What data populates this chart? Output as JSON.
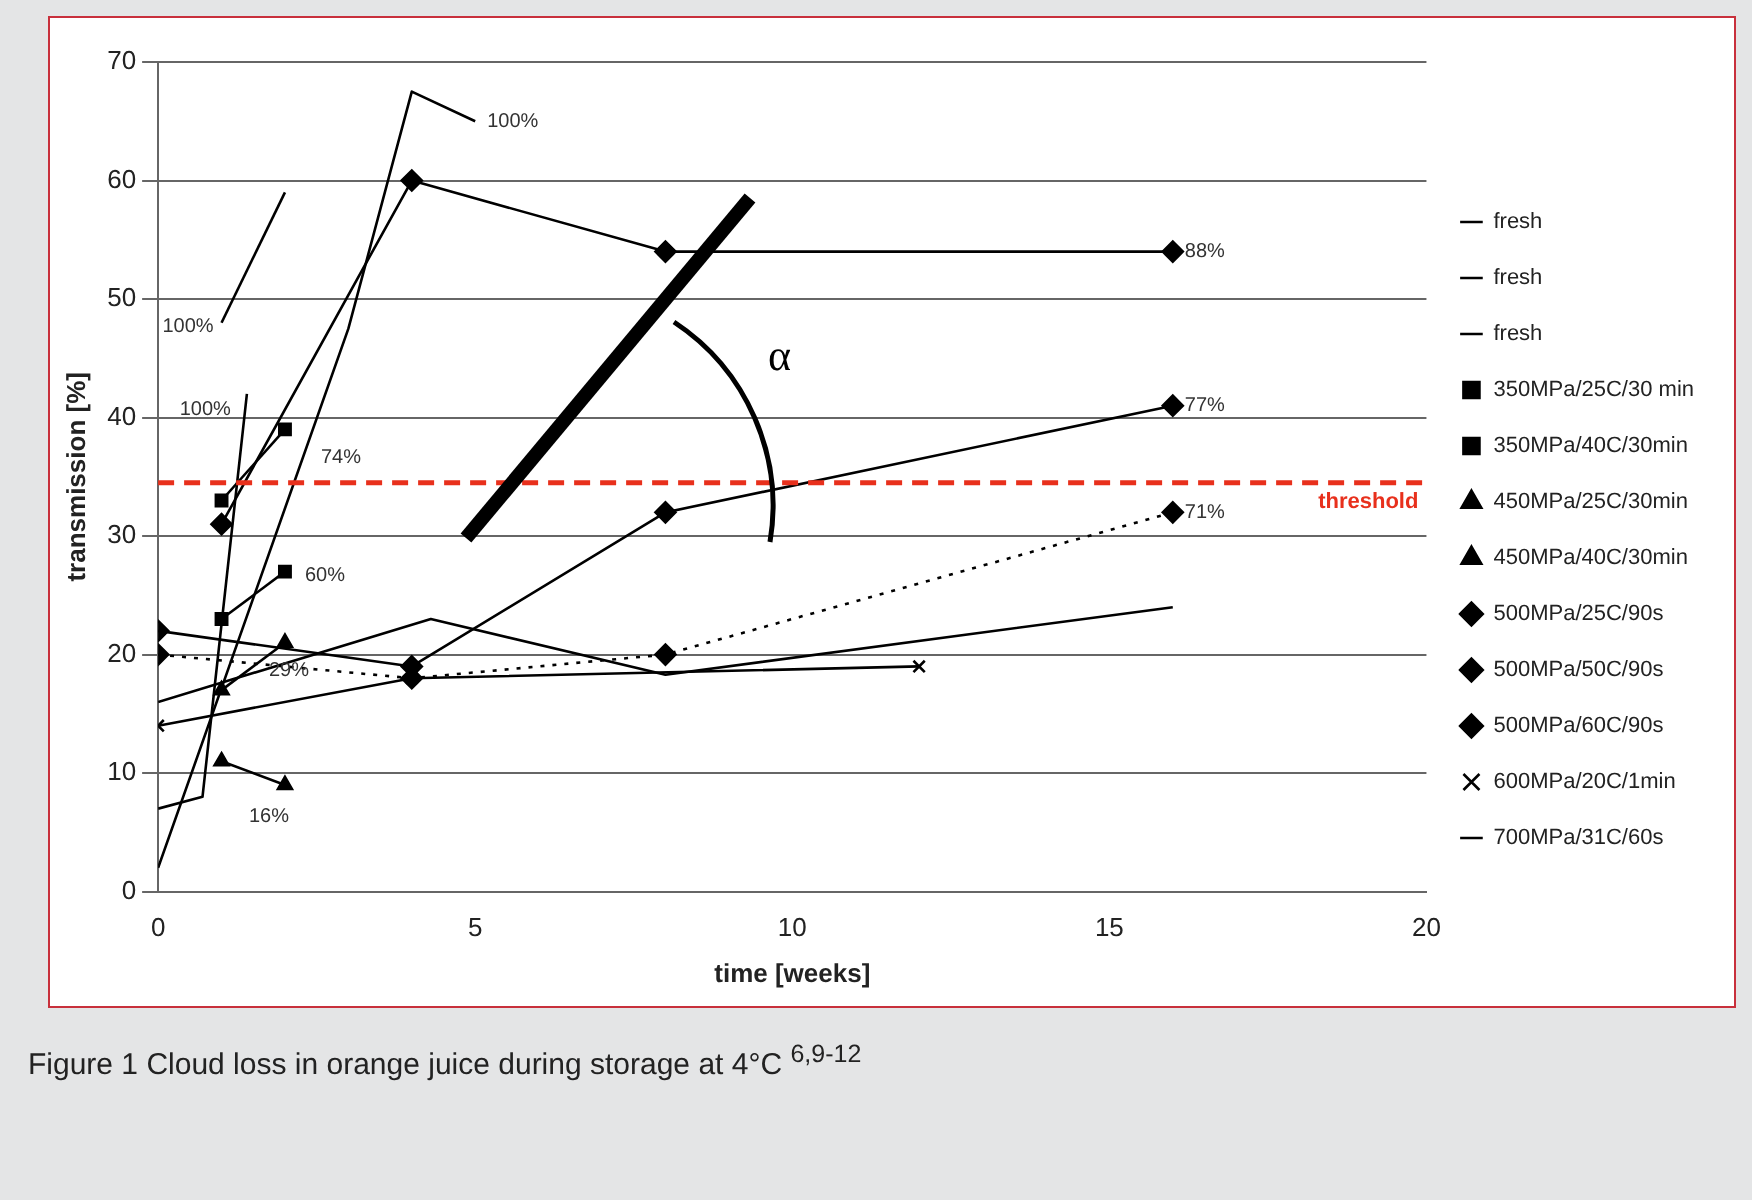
{
  "chart_data": {
    "type": "line",
    "xlabel": "time [weeks]",
    "ylabel": "transmission [%]",
    "xlim": [
      0,
      20
    ],
    "xticks": [
      0,
      5,
      10,
      15,
      20
    ],
    "ylim": [
      0,
      70
    ],
    "yticks": [
      0,
      10,
      20,
      30,
      40,
      50,
      60,
      70
    ],
    "grid": "y",
    "legend": "right",
    "series": [
      {
        "name": "fresh",
        "color": "#000000",
        "marker": "none",
        "x": [
          1,
          2
        ],
        "values": [
          48,
          59
        ]
      },
      {
        "name": "fresh",
        "color": "#000000",
        "marker": "none",
        "x": [
          0,
          0.7,
          1.4
        ],
        "values": [
          7,
          8,
          42
        ]
      },
      {
        "name": "fresh",
        "color": "#000000",
        "marker": "none",
        "x": [
          0,
          3,
          4,
          5
        ],
        "values": [
          2,
          47.5,
          67.5,
          65
        ]
      },
      {
        "name": "350MPa/25C/30 min",
        "color": "#000000",
        "marker": "square",
        "x": [
          1,
          2
        ],
        "values": [
          33,
          39
        ]
      },
      {
        "name": "350MPa/40C/30min",
        "color": "#000000",
        "marker": "square",
        "x": [
          1,
          2
        ],
        "values": [
          23,
          27
        ]
      },
      {
        "name": "450MPa/25C/30min",
        "color": "#000000",
        "marker": "triangle",
        "x": [
          1,
          2
        ],
        "values": [
          17,
          21
        ]
      },
      {
        "name": "450MPa/40C/30min",
        "color": "#000000",
        "marker": "triangle",
        "x": [
          1,
          2
        ],
        "values": [
          11,
          9
        ]
      },
      {
        "name": "500MPa/25C/90s",
        "color": "#000000",
        "marker": "diamond",
        "x": [
          1,
          4,
          8,
          16
        ],
        "values": [
          31,
          60,
          54,
          54
        ]
      },
      {
        "name": "500MPa/50C/90s",
        "color": "#000000",
        "marker": "diamond",
        "x": [
          0,
          4,
          8,
          16
        ],
        "values": [
          22,
          19,
          32,
          41
        ]
      },
      {
        "name": "500MPa/60C/90s",
        "color": "#000000",
        "marker": "diamond",
        "line_style": "dotted",
        "x": [
          0,
          4,
          8,
          16
        ],
        "values": [
          20,
          18,
          20,
          32
        ]
      },
      {
        "name": "600MPa/20C/1min",
        "color": "#000000",
        "marker": "cross",
        "x": [
          0,
          4,
          12
        ],
        "values": [
          14,
          18,
          19
        ]
      },
      {
        "name": "700MPa/31C/60s",
        "color": "#000000",
        "marker": "none",
        "x": [
          0,
          4.3,
          8,
          16
        ],
        "values": [
          16,
          23,
          18.3,
          24
        ]
      }
    ],
    "ref_lines": [
      {
        "axis": "y",
        "value": 34.5,
        "label": "threshold",
        "color": "#e8301c",
        "line_style": "dashed"
      }
    ],
    "annotations": [
      {
        "text": "100%",
        "x": 5,
        "y": 65
      },
      {
        "text": "100%",
        "x": 1,
        "y": 48
      },
      {
        "text": "100%",
        "x": 1.4,
        "y": 42
      },
      {
        "text": "74%",
        "x": 2,
        "y": 39
      },
      {
        "text": "60%",
        "x": 2,
        "y": 27
      },
      {
        "text": "29%",
        "x": 2,
        "y": 21
      },
      {
        "text": "16%",
        "x": 2,
        "y": 9
      },
      {
        "text": "88%",
        "x": 16,
        "y": 54
      },
      {
        "text": "77%",
        "x": 16,
        "y": 41
      },
      {
        "text": "71%",
        "x": 16,
        "y": 32
      },
      "α",
      "Figure 1 Cloud loss in orange juice during storage at 4°C $^{6,9-12}$"
    ]
  }
}
